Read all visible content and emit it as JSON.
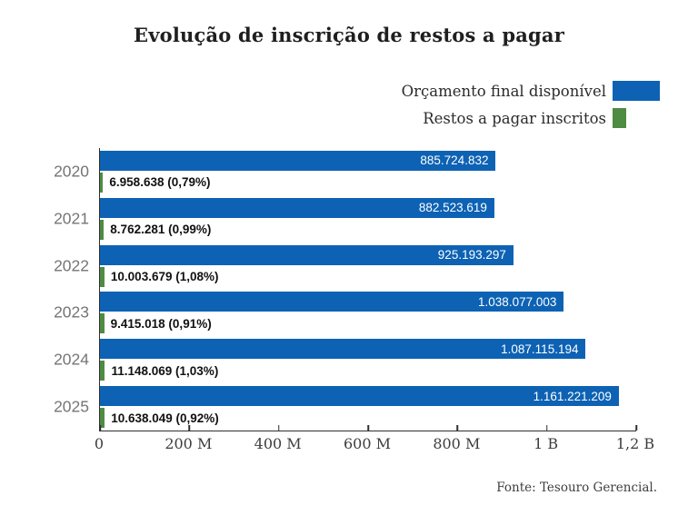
{
  "title": "Evolução de inscrição de restos a pagar",
  "legend": [
    {
      "label": "Orçamento final disponível",
      "color": "#0d62b4"
    },
    {
      "label": "Restos a pagar inscritos",
      "color": "#4e8b43"
    }
  ],
  "source": "Fonte: Tesouro Gerencial.",
  "chart_data": {
    "type": "bar",
    "orientation": "horizontal",
    "title": "Evolução de inscrição de restos a pagar",
    "categories": [
      "2020",
      "2021",
      "2022",
      "2023",
      "2024",
      "2025"
    ],
    "series": [
      {
        "name": "Orçamento final disponível",
        "color": "#0d62b4",
        "values": [
          885724832,
          882523619,
          925193297,
          1038077003,
          1087115194,
          1161221209
        ],
        "labels": [
          "885.724.832",
          "882.523.619",
          "925.193.297",
          "1.038.077.003",
          "1.087.115.194",
          "1.161.221.209"
        ]
      },
      {
        "name": "Restos a pagar inscritos",
        "color": "#4e8b43",
        "values": [
          6958638,
          8762281,
          10003679,
          9415018,
          11148069,
          10638049
        ],
        "labels": [
          "6.958.638 (0,79%)",
          "8.762.281 (0,99%)",
          "10.003.679 (1,08%)",
          "9.415.018 (0,91%)",
          "11.148.069 (1,03%)",
          "10.638.049 (0,92%)"
        ]
      }
    ],
    "xlim": [
      0,
      1200000000
    ],
    "x_ticks": [
      {
        "value": 0,
        "label": "0"
      },
      {
        "value": 200000000,
        "label": "200 M"
      },
      {
        "value": 400000000,
        "label": "400 M"
      },
      {
        "value": 600000000,
        "label": "600 M"
      },
      {
        "value": 800000000,
        "label": "800 M"
      },
      {
        "value": 1000000000,
        "label": "1 B"
      },
      {
        "value": 1200000000,
        "label": "1,2 B"
      }
    ],
    "grid": false,
    "legend_position": "top-right",
    "source": "Fonte: Tesouro Gerencial."
  }
}
